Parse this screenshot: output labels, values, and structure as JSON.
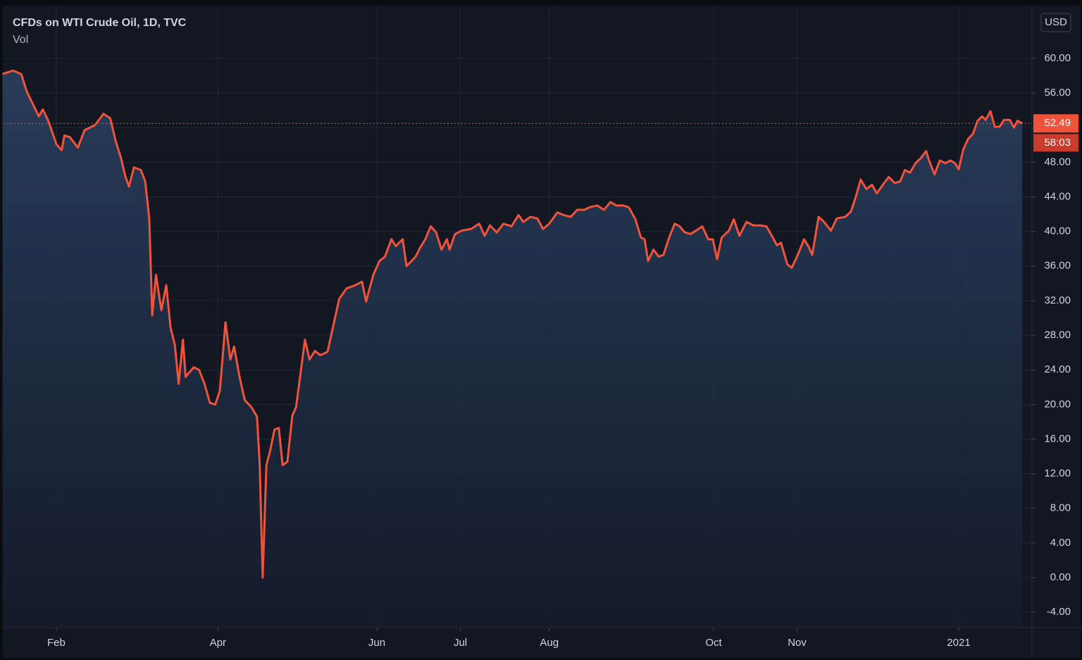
{
  "chart_data": {
    "type": "line",
    "title": "CFDs on WTI Crude Oil, 1D, TVC",
    "subtitle": "Vol",
    "currency": "USD",
    "color": "#f0533c",
    "area_color": "#1e3050",
    "last_price": 52.49,
    "countdown": "58:03",
    "grid": true,
    "xlim": [
      11.4,
      393.2
    ],
    "ylim": [
      -5.7,
      65.94
    ],
    "xticks": [
      {
        "value": 31,
        "label": "Feb"
      },
      {
        "value": 91,
        "label": "Apr"
      },
      {
        "value": 150,
        "label": "Jun"
      },
      {
        "value": 181,
        "label": "Jul"
      },
      {
        "value": 214,
        "label": "Aug"
      },
      {
        "value": 275,
        "label": "Oct"
      },
      {
        "value": 306,
        "label": "Nov"
      },
      {
        "value": 366,
        "label": "2021"
      }
    ],
    "yticks": [
      {
        "value": -4,
        "label": "-4.00"
      },
      {
        "value": 0,
        "label": "0.00"
      },
      {
        "value": 4,
        "label": "4.00"
      },
      {
        "value": 8,
        "label": "8.00"
      },
      {
        "value": 12,
        "label": "12.00"
      },
      {
        "value": 16,
        "label": "16.00"
      },
      {
        "value": 20,
        "label": "20.00"
      },
      {
        "value": 24,
        "label": "24.00"
      },
      {
        "value": 28,
        "label": "28.00"
      },
      {
        "value": 32,
        "label": "32.00"
      },
      {
        "value": 36,
        "label": "36.00"
      },
      {
        "value": 40,
        "label": "40.00"
      },
      {
        "value": 44,
        "label": "44.00"
      },
      {
        "value": 48,
        "label": "48.00"
      },
      {
        "value": 52,
        "label": "52.00"
      },
      {
        "value": 56,
        "label": "56.00"
      },
      {
        "value": 60,
        "label": "60.00"
      }
    ],
    "x": [
      11,
      15,
      18,
      20,
      24.5,
      26,
      28,
      31,
      33,
      34,
      36,
      39,
      41.5,
      45.4,
      48.5,
      51,
      53,
      55,
      56.6,
      58,
      59.8,
      62.4,
      64,
      65.5,
      66.6,
      68,
      70,
      71.8,
      73.4,
      75,
      76.4,
      78,
      79,
      82,
      84,
      86,
      88,
      90,
      91.7,
      93.8,
      95.6,
      97,
      99,
      101,
      103.4,
      105.5,
      106.5,
      107.6,
      109,
      110.4,
      112,
      113.6,
      115,
      116.8,
      118.6,
      120,
      122,
      123.3,
      125,
      127,
      129,
      131.7,
      136,
      138.7,
      142,
      144.5,
      146,
      148.7,
      151,
      153,
      155.4,
      157,
      159.6,
      161,
      164.4,
      166,
      168,
      170,
      172,
      174,
      176,
      177,
      179,
      181.6,
      185,
      188,
      190,
      192,
      194.5,
      197,
      200,
      202.6,
      204.4,
      207,
      209.6,
      211.7,
      214,
      217,
      219.3,
      222,
      224.4,
      227,
      229,
      231.8,
      234.3,
      236.7,
      239,
      241.5,
      243.5,
      246,
      248,
      249.4,
      250.7,
      252.7,
      254.6,
      256.4,
      258.5,
      260.6,
      262.4,
      264.3,
      266.4,
      268.5,
      270.8,
      273,
      274.7,
      276.3,
      278,
      280.7,
      282.5,
      284.6,
      287.2,
      289.8,
      292.4,
      294.6,
      297,
      298.5,
      300,
      302.4,
      304,
      306,
      308.6,
      310,
      311.6,
      314,
      316,
      318.6,
      320.7,
      323.9,
      326,
      327.8,
      329.6,
      331.7,
      333.8,
      335.6,
      338.3,
      340,
      342.2,
      344.3,
      346,
      347.9,
      350,
      352,
      353.9,
      355,
      357,
      359,
      361,
      363,
      364.6,
      366,
      367.7,
      369.5,
      371.3,
      373,
      374.7,
      376,
      377.8,
      379.4,
      381.2,
      382.8,
      385,
      386.5,
      387.8,
      389.6
    ],
    "values": [
      58.2,
      58.6,
      58.2,
      56.2,
      53.3,
      54.1,
      52.8,
      50.1,
      49.4,
      51.1,
      50.9,
      49.7,
      51.7,
      52.3,
      53.6,
      53.1,
      50.5,
      48.5,
      46.4,
      45.2,
      47.4,
      47.1,
      45.8,
      41.5,
      30.3,
      35.0,
      30.9,
      33.8,
      28.9,
      26.9,
      22.4,
      27.5,
      23.2,
      24.3,
      24.0,
      22.4,
      20.2,
      20.0,
      21.6,
      29.5,
      25.2,
      26.7,
      23.2,
      20.5,
      19.7,
      18.6,
      13.0,
      0.0,
      13.0,
      14.7,
      17.1,
      17.3,
      13.0,
      13.4,
      18.7,
      19.7,
      24.4,
      27.5,
      25.2,
      26.2,
      25.7,
      26.1,
      32.2,
      33.4,
      33.8,
      34.2,
      31.9,
      35.0,
      36.6,
      37.1,
      39.1,
      38.3,
      39.1,
      36.0,
      37.1,
      38.1,
      39.1,
      40.6,
      39.9,
      37.9,
      39.1,
      37.9,
      39.7,
      40.1,
      40.3,
      40.9,
      39.5,
      40.7,
      39.9,
      40.9,
      40.6,
      41.9,
      41.1,
      41.7,
      41.5,
      40.3,
      40.9,
      42.2,
      41.9,
      41.7,
      42.5,
      42.5,
      42.8,
      43.0,
      42.5,
      43.4,
      43.0,
      43.0,
      42.8,
      41.4,
      39.3,
      39.1,
      36.6,
      37.9,
      37.1,
      37.3,
      39.3,
      40.9,
      40.6,
      39.9,
      39.7,
      40.1,
      40.6,
      39.1,
      39.1,
      36.8,
      39.3,
      40.1,
      41.4,
      39.5,
      41.1,
      40.7,
      40.7,
      40.6,
      39.3,
      38.4,
      38.7,
      36.2,
      35.8,
      37.1,
      39.1,
      38.4,
      37.3,
      41.7,
      41.1,
      40.1,
      41.5,
      41.7,
      42.3,
      44.0,
      46.0,
      44.9,
      45.4,
      44.4,
      45.6,
      46.3,
      45.6,
      45.8,
      47.1,
      46.8,
      47.9,
      48.5,
      49.3,
      48.2,
      46.6,
      48.2,
      47.9,
      48.2,
      47.9,
      47.2,
      49.5,
      50.7,
      51.3,
      52.8,
      53.3,
      52.9,
      53.9,
      52.1,
      52.1,
      52.9,
      52.9,
      52.0,
      52.8,
      52.49
    ]
  }
}
